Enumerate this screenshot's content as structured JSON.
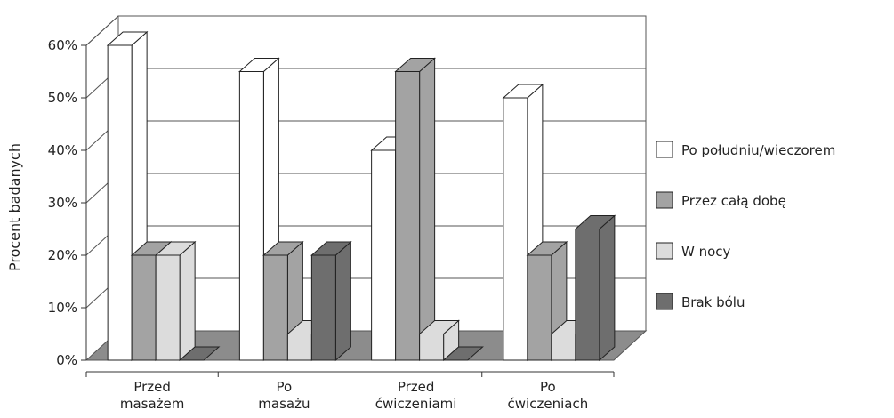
{
  "chart_data": {
    "type": "bar",
    "style": "3d-clustered",
    "ylabel": "Procent badanych",
    "xlabel": "",
    "ylim": [
      0,
      60
    ],
    "yticks": [
      0,
      10,
      20,
      30,
      40,
      50,
      60
    ],
    "ytick_suffix": "%",
    "grid": true,
    "legend_position": "right",
    "categories": [
      [
        "Przed",
        "masażem"
      ],
      [
        "Po",
        "masażu"
      ],
      [
        "Przed",
        "ćwiczeniami"
      ],
      [
        "Po",
        "ćwiczeniach"
      ]
    ],
    "series": [
      {
        "name": "Po południu/wieczorem",
        "color": "#ffffff",
        "values": [
          60,
          55,
          40,
          50
        ]
      },
      {
        "name": "Przez całą dobę",
        "color": "#a3a3a3",
        "values": [
          20,
          20,
          55,
          20
        ]
      },
      {
        "name": "W nocy",
        "color": "#dcdcdc",
        "values": [
          20,
          5,
          5,
          5
        ]
      },
      {
        "name": "Brak bólu",
        "color": "#6e6e6e",
        "values": [
          0,
          20,
          0,
          25
        ]
      }
    ]
  }
}
